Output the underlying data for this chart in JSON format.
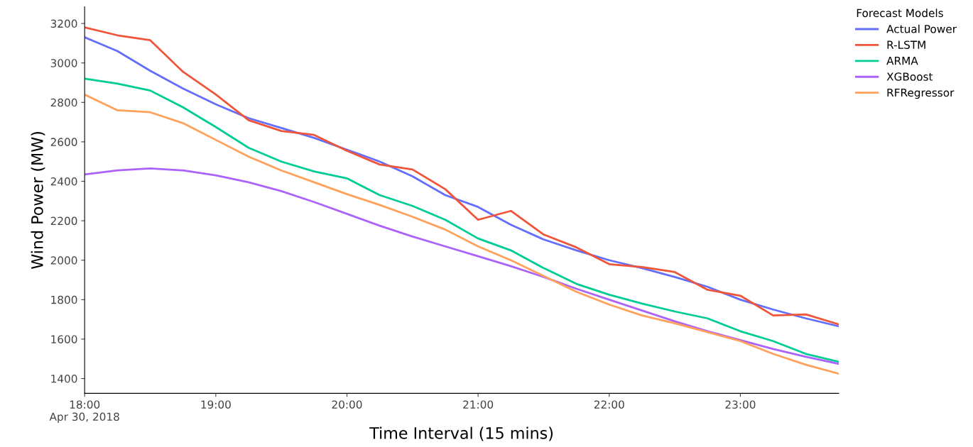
{
  "chart_data": {
    "type": "line",
    "xlabel": "Time Interval (15 mins)",
    "ylabel": "Wind Power (MW)",
    "legend_title": "Forecast Models",
    "legend": "top right",
    "grid": false,
    "marker": "none",
    "line_style": "solid",
    "x": [
      "2018-04-30T18:00",
      "2018-04-30T18:15",
      "2018-04-30T18:30",
      "2018-04-30T18:45",
      "2018-04-30T19:00",
      "2018-04-30T19:15",
      "2018-04-30T19:30",
      "2018-04-30T19:45",
      "2018-04-30T20:00",
      "2018-04-30T20:15",
      "2018-04-30T20:30",
      "2018-04-30T20:45",
      "2018-04-30T21:00",
      "2018-04-30T21:15",
      "2018-04-30T21:30",
      "2018-04-30T21:45",
      "2018-04-30T22:00",
      "2018-04-30T22:15",
      "2018-04-30T22:30",
      "2018-04-30T22:45",
      "2018-04-30T23:00",
      "2018-04-30T23:15",
      "2018-04-30T23:30",
      "2018-04-30T23:45"
    ],
    "xlim": [
      "2018-04-30T18:00",
      "2018-04-30T23:45"
    ],
    "xticks": [
      {
        "value": "2018-04-30T18:00",
        "label": "18:00\nApr 30, 2018"
      },
      {
        "value": "2018-04-30T19:00",
        "label": "19:00"
      },
      {
        "value": "2018-04-30T20:00",
        "label": "20:00"
      },
      {
        "value": "2018-04-30T21:00",
        "label": "21:00"
      },
      {
        "value": "2018-04-30T22:00",
        "label": "22:00"
      },
      {
        "value": "2018-04-30T23:00",
        "label": "23:00"
      }
    ],
    "ylim": [
      1325,
      3285
    ],
    "yticks": [
      1400,
      1600,
      1800,
      2000,
      2200,
      2400,
      2600,
      2800,
      3000,
      3200
    ],
    "series": [
      {
        "name": "Actual Power",
        "color": "#636efa",
        "values": [
          3130,
          3060,
          2960,
          2870,
          2790,
          2720,
          2670,
          2620,
          2560,
          2500,
          2425,
          2330,
          2270,
          2180,
          2105,
          2050,
          2000,
          1960,
          1915,
          1865,
          1800,
          1750,
          1705,
          1665
        ]
      },
      {
        "name": "R-LSTM",
        "color": "#ef553b",
        "values": [
          3180,
          3140,
          3115,
          2955,
          2840,
          2710,
          2655,
          2635,
          2555,
          2485,
          2460,
          2360,
          2205,
          2250,
          2130,
          2065,
          1980,
          1965,
          1940,
          1850,
          1820,
          1720,
          1725,
          1675
        ]
      },
      {
        "name": "ARMA",
        "color": "#00cc96",
        "values": [
          2920,
          2895,
          2860,
          2775,
          2675,
          2570,
          2500,
          2450,
          2415,
          2330,
          2275,
          2205,
          2110,
          2050,
          1960,
          1880,
          1825,
          1780,
          1740,
          1705,
          1640,
          1590,
          1525,
          1485
        ]
      },
      {
        "name": "XGBoost",
        "color": "#ab63fa",
        "values": [
          2435,
          2455,
          2465,
          2455,
          2430,
          2395,
          2350,
          2295,
          2235,
          2175,
          2120,
          2070,
          2020,
          1970,
          1915,
          1855,
          1800,
          1745,
          1690,
          1640,
          1595,
          1550,
          1510,
          1475
        ]
      },
      {
        "name": "RFRegressor",
        "color": "#ffa15a",
        "values": [
          2840,
          2760,
          2750,
          2695,
          2610,
          2525,
          2455,
          2395,
          2335,
          2280,
          2220,
          2155,
          2070,
          2000,
          1920,
          1840,
          1775,
          1720,
          1680,
          1635,
          1590,
          1525,
          1470,
          1425
        ]
      }
    ]
  }
}
